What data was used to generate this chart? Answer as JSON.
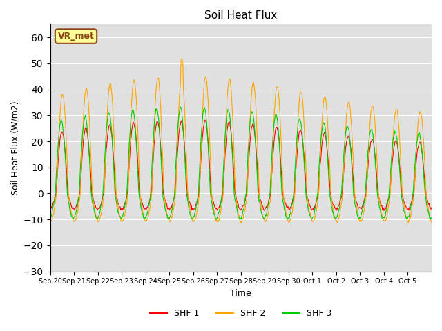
{
  "title": "Soil Heat Flux",
  "xlabel": "Time",
  "ylabel": "Soil Heat Flux (W/m2)",
  "ylim": [
    -30,
    65
  ],
  "yticks": [
    -30,
    -20,
    -10,
    0,
    10,
    20,
    30,
    40,
    50,
    60
  ],
  "xtick_labels": [
    "Sep 20",
    "Sep 21",
    "Sep 22",
    "Sep 23",
    "Sep 24",
    "Sep 25",
    "Sep 26",
    "Sep 27",
    "Sep 28",
    "Sep 29",
    "Sep 30",
    "Oct 1",
    "Oct 2",
    "Oct 3",
    "Oct 4",
    "Oct 5"
  ],
  "shf1_color": "#FF0000",
  "shf2_color": "#FFA500",
  "shf3_color": "#00CC00",
  "bg_color": "#E0E0E0",
  "annotation_text": "VR_met",
  "annotation_color": "#8B4513",
  "annotation_bg": "#FFFF99",
  "legend_entries": [
    "SHF 1",
    "SHF 2",
    "SHF 3"
  ],
  "num_days": 16,
  "night_min_shf1": -10,
  "night_min_shf2": -18,
  "night_min_shf3": -16,
  "day_max_shf1": 28,
  "day_max_shf2": 45,
  "day_max_shf3": 33
}
